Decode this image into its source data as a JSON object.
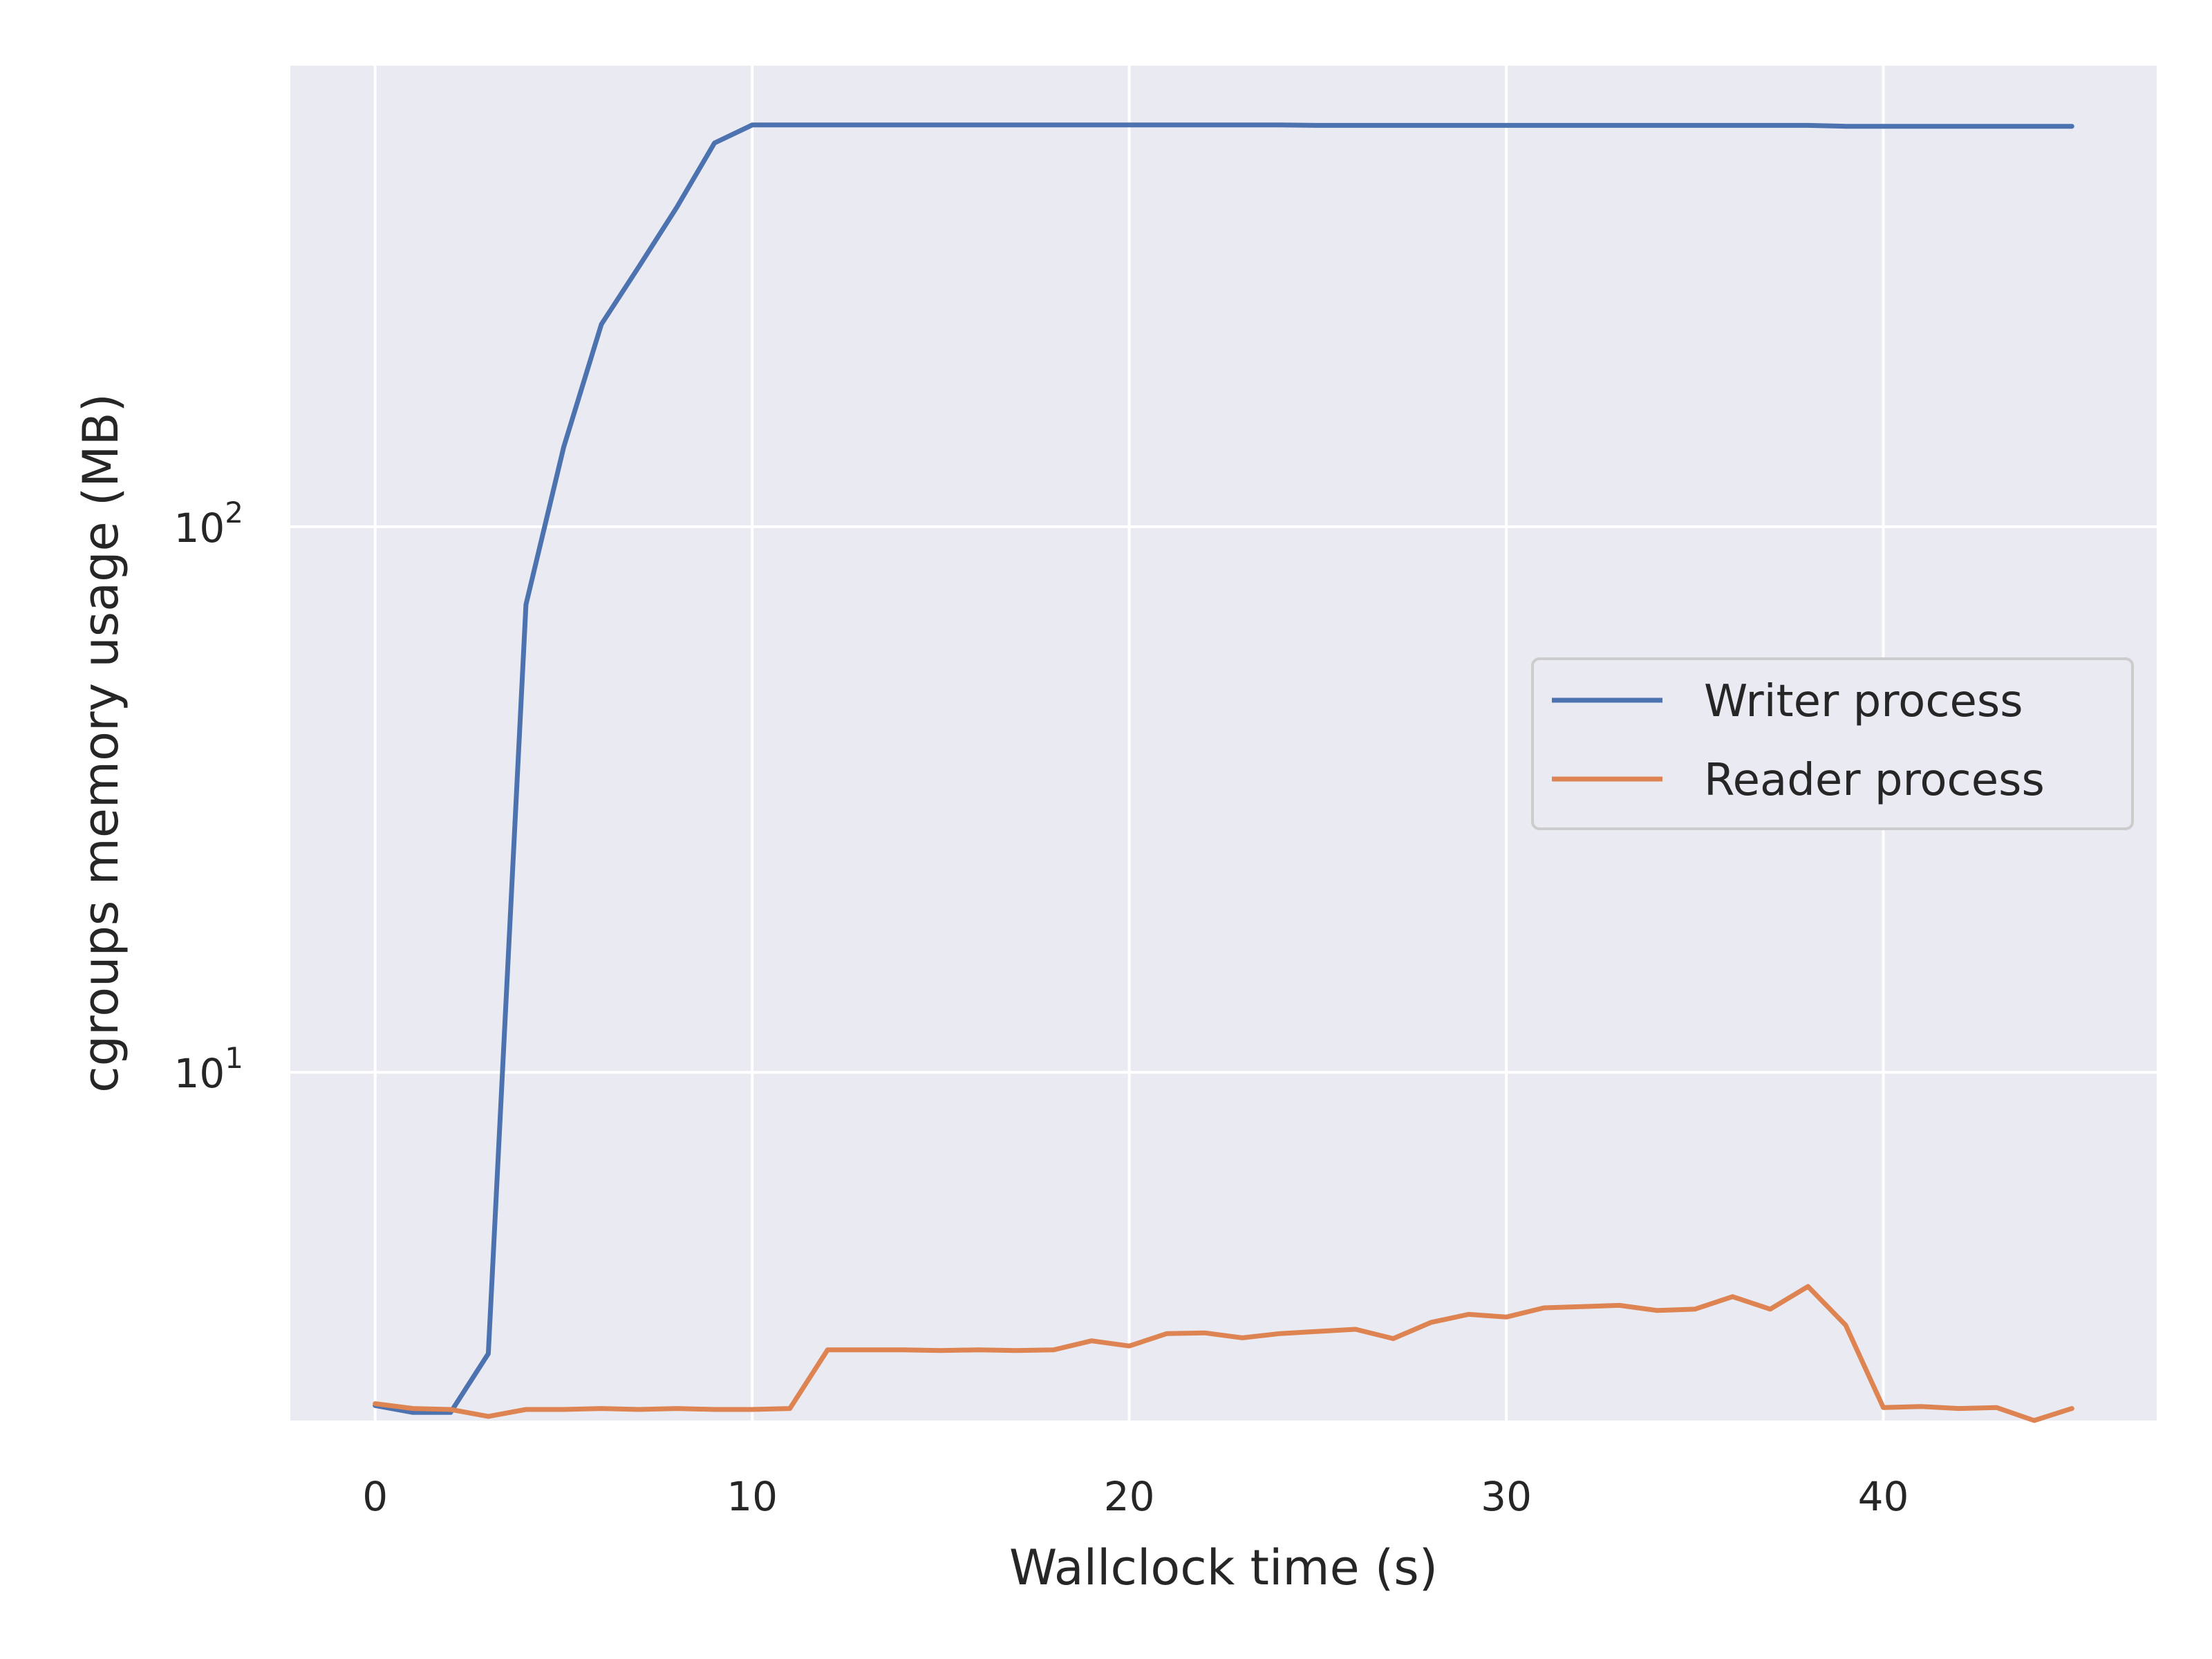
{
  "chart_data": {
    "type": "line",
    "title": "",
    "xlabel": "Wallclock time (s)",
    "ylabel": "cgroups memory usage (MB)",
    "xlim": [
      -2.25,
      47.25
    ],
    "ylim": [
      2.3,
      700
    ],
    "yscale": "log",
    "xticks": [
      0,
      10,
      20,
      30,
      40
    ],
    "yticks": [
      {
        "value": 10,
        "base": "10",
        "exp": "1"
      },
      {
        "value": 100,
        "base": "10",
        "exp": "2"
      }
    ],
    "grid": true,
    "legend_position": "center-right",
    "x": [
      0,
      1,
      2,
      3,
      4,
      5,
      6,
      7,
      8,
      9,
      10,
      11,
      12,
      13,
      14,
      15,
      16,
      17,
      18,
      19,
      20,
      21,
      22,
      23,
      24,
      25,
      26,
      27,
      28,
      29,
      30,
      31,
      32,
      33,
      34,
      35,
      36,
      37,
      38,
      39,
      40,
      41,
      42,
      43,
      44,
      45
    ],
    "series": [
      {
        "name": "Writer process",
        "color": "#4c72b0",
        "values": [
          2.45,
          2.38,
          2.38,
          3.05,
          72.0,
          140.0,
          235.0,
          300.0,
          385.0,
          505.0,
          545.0,
          545.0,
          545.0,
          545.0,
          545.0,
          545.0,
          545.0,
          545.0,
          545.0,
          545.0,
          545.0,
          545.0,
          545.0,
          545.0,
          545.0,
          544.0,
          544.0,
          544.0,
          544.0,
          544.0,
          544.0,
          544.0,
          544.0,
          544.0,
          544.0,
          544.0,
          544.0,
          544.0,
          544.0,
          542.0,
          542.0,
          542.0,
          542.0,
          542.0,
          542.0,
          542.0
        ]
      },
      {
        "name": "Reader process",
        "color": "#dd8452",
        "values": [
          2.47,
          2.42,
          2.41,
          2.34,
          2.41,
          2.41,
          2.42,
          2.41,
          2.42,
          2.41,
          2.41,
          2.42,
          3.1,
          3.1,
          3.1,
          3.09,
          3.1,
          3.09,
          3.1,
          3.22,
          3.15,
          3.32,
          3.33,
          3.26,
          3.32,
          3.35,
          3.38,
          3.25,
          3.48,
          3.6,
          3.56,
          3.7,
          3.72,
          3.74,
          3.66,
          3.68,
          3.88,
          3.68,
          4.05,
          3.44,
          2.43,
          2.44,
          2.42,
          2.43,
          2.3,
          2.42
        ]
      }
    ]
  }
}
